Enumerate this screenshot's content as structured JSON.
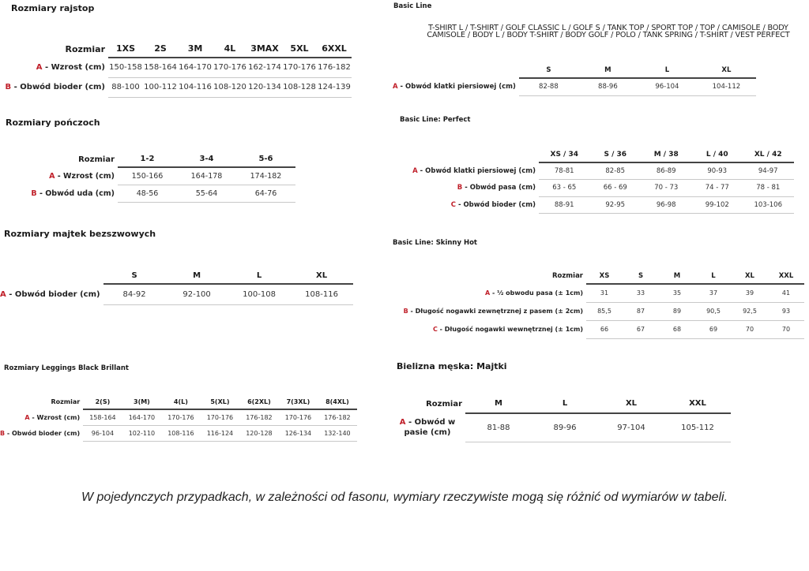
{
  "accent_color": "#c0202a",
  "tables": [
    {
      "title": "Rozmiary rajstop",
      "size_label": "Rozmiar",
      "headers": [
        "1XS",
        "2S",
        "3M",
        "4L",
        "3MAX",
        "5XL",
        "6XXL"
      ],
      "rows": [
        {
          "letter": "A",
          "label": " - Wzrost (cm)",
          "values": [
            "150-158",
            "158-164",
            "164-170",
            "170-176",
            "162-174",
            "170-176",
            "176-182"
          ]
        },
        {
          "letter": "B",
          "label": " - Obwód bioder (cm)",
          "values": [
            "88-100",
            "100-112",
            "104-116",
            "108-120",
            "120-134",
            "108-128",
            "124-139"
          ]
        }
      ]
    },
    {
      "title": "Rozmiary pończoch",
      "size_label": "Rozmiar",
      "headers": [
        "1-2",
        "3-4",
        "5-6"
      ],
      "rows": [
        {
          "letter": "A",
          "label": " - Wzrost (cm)",
          "values": [
            "150-166",
            "164-178",
            "174-182"
          ]
        },
        {
          "letter": "B",
          "label": " - Obwód uda (cm)",
          "values": [
            "48-56",
            "55-64",
            "64-76"
          ]
        }
      ]
    },
    {
      "title": "Rozmiary majtek bezszwowych",
      "size_label": "",
      "headers": [
        "S",
        "M",
        "L",
        "XL"
      ],
      "rows": [
        {
          "letter": "A",
          "label": " - Obwód bioder (cm)",
          "values": [
            "84-92",
            "92-100",
            "100-108",
            "108-116"
          ]
        }
      ]
    },
    {
      "title": "Rozmiary Leggings Black Brillant",
      "size_label": "Rozmiar",
      "headers": [
        "2(S)",
        "3(M)",
        "4(L)",
        "5(XL)",
        "6(2XL)",
        "7(3XL)",
        "8(4XL)"
      ],
      "rows": [
        {
          "letter": "A",
          "label": " - Wzrost (cm)",
          "values": [
            "158-164",
            "164-170",
            "170-176",
            "170-176",
            "176-182",
            "170-176",
            "176-182"
          ]
        },
        {
          "letter": "B",
          "label": " - Obwód bioder (cm)",
          "values": [
            "96-104",
            "102-110",
            "108-116",
            "116-124",
            "120-128",
            "126-134",
            "132-140"
          ]
        }
      ]
    },
    {
      "title": "Basic Line",
      "subtitle_lines": [
        "T-SHIRT L / T-SHIRT / GOLF CLASSIC L / GOLF S / TANK TOP / SPORT TOP / TOP / CAMISOLE / BODY",
        "CAMISOLE / BODY L / BODY T-SHIRT / BODY GOLF / POLO / TANK SPRING / T-SHIRT / VEST PERFECT"
      ],
      "size_label": "",
      "headers": [
        "S",
        "M",
        "L",
        "XL"
      ],
      "rows": [
        {
          "letter": "A",
          "label": " - Obwód klatki piersiowej (cm)",
          "values": [
            "82-88",
            "88-96",
            "96-104",
            "104-112"
          ]
        }
      ]
    },
    {
      "title": "Basic Line: Perfect",
      "size_label": "",
      "headers": [
        "XS / 34",
        "S / 36",
        "M / 38",
        "L / 40",
        "XL / 42"
      ],
      "rows": [
        {
          "letter": "A",
          "label": " - Obwód klatki piersiowej (cm)",
          "values": [
            "78-81",
            "82-85",
            "86-89",
            "90-93",
            "94-97"
          ]
        },
        {
          "letter": "B",
          "label": " - Obwód pasa (cm)",
          "values": [
            "63 - 65",
            "66 - 69",
            "70 - 73",
            "74 - 77",
            "78 - 81"
          ]
        },
        {
          "letter": "C",
          "label": " - Obwód bioder (cm)",
          "values": [
            "88-91",
            "92-95",
            "96-98",
            "99-102",
            "103-106"
          ]
        }
      ]
    },
    {
      "title": "Basic Line: Skinny Hot",
      "size_label": "Rozmiar",
      "headers": [
        "XS",
        "S",
        "M",
        "L",
        "XL",
        "XXL"
      ],
      "rows": [
        {
          "letter": "A",
          "label": " - ½ obwodu pasa (± 1cm)",
          "values": [
            "31",
            "33",
            "35",
            "37",
            "39",
            "41"
          ]
        },
        {
          "letter": "B",
          "label": " - Długość nogawki zewnętrznej z pasem (± 2cm)",
          "values": [
            "85,5",
            "87",
            "89",
            "90,5",
            "92,5",
            "93"
          ]
        },
        {
          "letter": "C",
          "label": " - Długość nogawki wewnętrznej (± 1cm)",
          "values": [
            "66",
            "67",
            "68",
            "69",
            "70",
            "70"
          ]
        }
      ]
    },
    {
      "title": "Bielizna męska: Majtki",
      "size_label": "Rozmiar",
      "headers": [
        "M",
        "L",
        "XL",
        "XXL"
      ],
      "rows": [
        {
          "letter": "A",
          "label": " - Obwód w pasie (cm)",
          "values": [
            "81-88",
            "89-96",
            "97-104",
            "105-112"
          ]
        }
      ]
    }
  ],
  "footnote": "W pojedynczych przypadkach, w zależności od fasonu, wymiary rzeczywiste mogą się różnić od wymiarów w tabeli."
}
